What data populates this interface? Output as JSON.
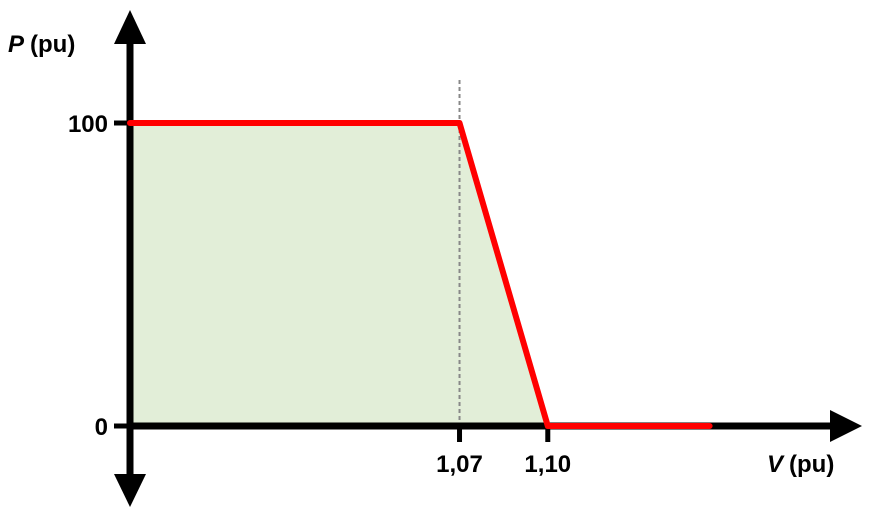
{
  "chart_data": {
    "type": "line",
    "title": "",
    "xlabel": {
      "symbol": "V",
      "unit": "(pu)"
    },
    "ylabel": {
      "symbol": "P",
      "unit": "(pu)"
    },
    "x_ticks": [
      {
        "value": 1.07,
        "label": "1,07"
      },
      {
        "value": 1.1,
        "label": "1,10"
      }
    ],
    "y_ticks": [
      {
        "value": 0,
        "label": "0"
      },
      {
        "value": 100,
        "label": "100"
      }
    ],
    "series": [
      {
        "color": "#ff0000",
        "x": [
          0.958,
          1.07,
          1.1,
          1.155
        ],
        "y": [
          100,
          100,
          0,
          0
        ]
      }
    ],
    "vertical_reference_line": {
      "x": 1.07,
      "style": "dashed",
      "color": "#888888"
    },
    "area_fill": {
      "color": "#e2eed8",
      "under_series": true
    },
    "xlim": [
      0.958,
      1.2
    ],
    "ylim": [
      -20,
      135
    ],
    "grid": false,
    "legend": "none",
    "colors": {
      "axis": "#000000",
      "line": "#ff0000",
      "fill": "#e2eed8",
      "refline": "#888888"
    }
  }
}
